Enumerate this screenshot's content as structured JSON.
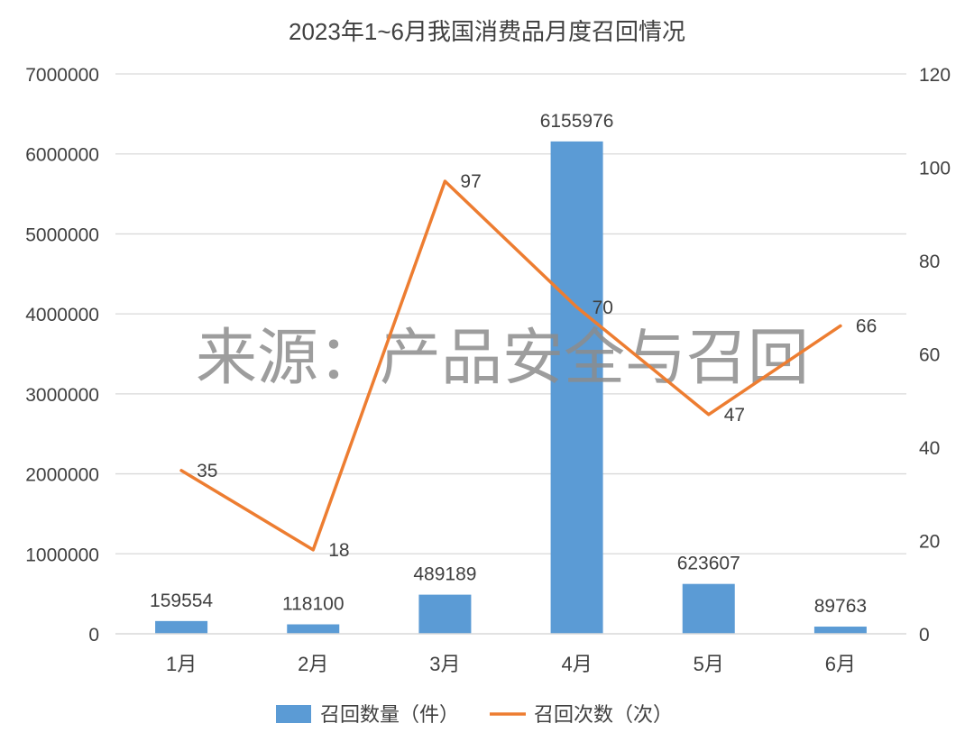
{
  "chart_data": {
    "type": "bar+line",
    "title": "2023年1~6月我国消费品月度召回情况",
    "categories": [
      "1月",
      "2月",
      "3月",
      "4月",
      "5月",
      "6月"
    ],
    "series": [
      {
        "name": "召回数量（件）",
        "type": "bar",
        "axis": "left",
        "values": [
          159554,
          118100,
          489189,
          6155976,
          623607,
          89763
        ],
        "color": "#5B9BD5"
      },
      {
        "name": "召回次数（次）",
        "type": "line",
        "axis": "right",
        "values": [
          35,
          18,
          97,
          70,
          47,
          66
        ],
        "color": "#ED7D31"
      }
    ],
    "y_left": {
      "min": 0,
      "max": 7000000,
      "ticks": [
        0,
        1000000,
        2000000,
        3000000,
        4000000,
        5000000,
        6000000,
        7000000
      ]
    },
    "y_right": {
      "min": 0,
      "max": 120,
      "ticks": [
        0,
        20,
        40,
        60,
        80,
        100,
        120
      ]
    },
    "grid": true,
    "legend_position": "bottom",
    "watermark": "来源：产品安全与召回",
    "colors": {
      "grid": "#D9D9D9",
      "text": "#404040",
      "axis": "#D9D9D9",
      "watermark": "#8C8C8C"
    }
  }
}
